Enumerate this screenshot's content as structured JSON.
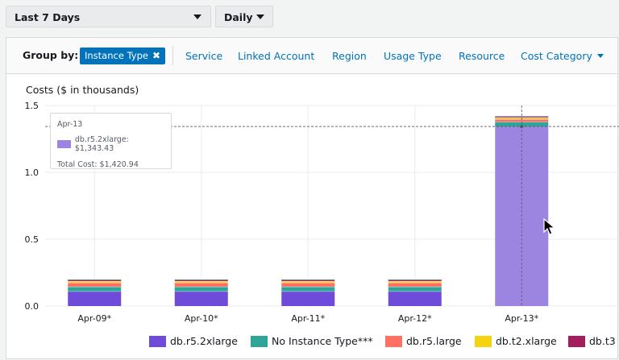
{
  "filters": {
    "date_range": "Last 7 Days",
    "granularity": "Daily"
  },
  "group_by": {
    "label": "Group by:",
    "active_chip": "Instance Type",
    "options": [
      "Service",
      "Linked Account",
      "Region",
      "Usage Type",
      "Resource",
      "Cost Category"
    ]
  },
  "chart": {
    "title": "Costs ($ in thousands)"
  },
  "tooltip": {
    "date": "Apr-13",
    "series_line": "db.r5.2xlarge: $1,343.43",
    "total_line": "Total Cost: $1,420.94",
    "color": "#9b85e0"
  },
  "colors": {
    "link": "#0073bb",
    "chip": "#0073bb",
    "highlight": "#9b85e0"
  },
  "chart_data": {
    "type": "bar",
    "stacked": true,
    "title": "Costs ($ in thousands)",
    "categories": [
      "Apr-09*",
      "Apr-10*",
      "Apr-11*",
      "Apr-12*",
      "Apr-13*"
    ],
    "ylim": [
      0,
      1.5
    ],
    "yticks": [
      0.0,
      0.5,
      1.0,
      1.5
    ],
    "ytick_labels": [
      "0.0",
      "0.5",
      "1.0",
      "1.5"
    ],
    "grid": true,
    "highlight_index": 4,
    "crosshair_value": 1.343,
    "series": [
      {
        "name": "db.r5.2xlarge",
        "color": "#6e4bd8",
        "values": [
          0.11,
          0.11,
          0.11,
          0.11,
          1.343
        ]
      },
      {
        "name": "No Instance Type***",
        "color": "#2ea597",
        "values": [
          0.035,
          0.035,
          0.035,
          0.035,
          0.035
        ]
      },
      {
        "name": "db.r5.large",
        "color": "#ff7063",
        "values": [
          0.03,
          0.03,
          0.03,
          0.03,
          0.02
        ]
      },
      {
        "name": "db.t2.xlarge",
        "color": "#f5d30f",
        "values": [
          0.012,
          0.012,
          0.012,
          0.012,
          0.01
        ]
      },
      {
        "name": "db.t3",
        "color": "#a41e5f",
        "values": [
          0.008,
          0.008,
          0.008,
          0.008,
          0.008
        ]
      },
      {
        "name": "",
        "color": "#1f3d7a",
        "values": [
          0.006,
          0.006,
          0.006,
          0.006,
          0.006
        ]
      }
    ],
    "legend": [
      "db.r5.2xlarge",
      "No Instance Type***",
      "db.r5.large",
      "db.t2.xlarge",
      "db.t3"
    ]
  }
}
